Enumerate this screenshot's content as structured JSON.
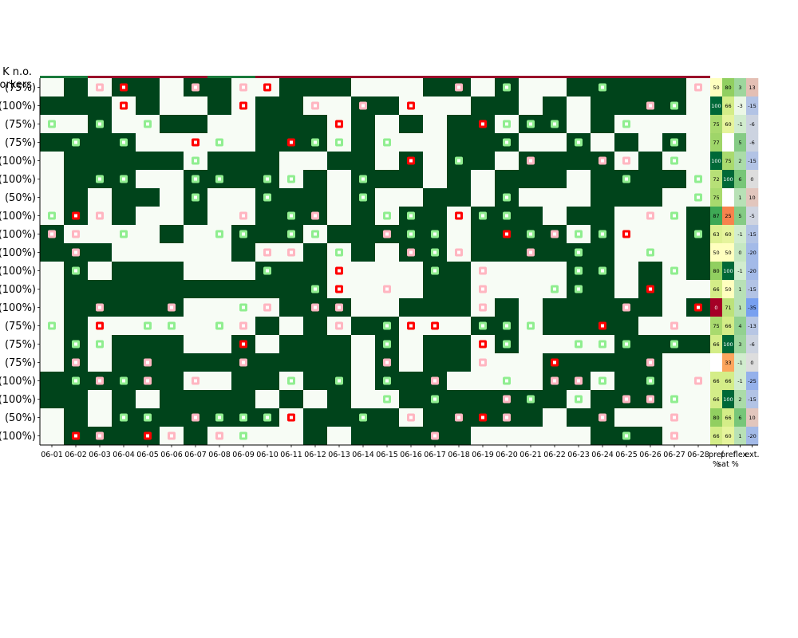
{
  "chart_data": {
    "type": "heatmap",
    "corner_label": [
      "K n.o.",
      "workers"
    ],
    "x_labels": [
      "06-01",
      "06-02",
      "06-03",
      "06-04",
      "06-05",
      "06-06",
      "06-07",
      "06-08",
      "06-09",
      "06-10",
      "06-11",
      "06-12",
      "06-13",
      "06-14",
      "06-15",
      "06-16",
      "06-17",
      "06-18",
      "06-19",
      "06-20",
      "06-21",
      "06-22",
      "06-23",
      "06-24",
      "06-25",
      "06-26",
      "06-27",
      "06-28"
    ],
    "row_labels": [
      "(75%)",
      "(100%)",
      "(75%)",
      "(75%)",
      "(100%)",
      "(100%)",
      "(50%)",
      "(100%)",
      "(100%)",
      "(100%)",
      "(100%)",
      "(100%)",
      "(100%)",
      "(75%)",
      "(75%)",
      "(75%)",
      "(100%)",
      "(100%)",
      "(50%)",
      "(100%)"
    ],
    "cell_legend": {
      "0": "off",
      "1": "on"
    },
    "grid": [
      "0101101100111000110100111110",
      "1110100101100110001101011110",
      "0010011001110101011011010000",
      "1111000001110100011100101010",
      "0111110111001101011011110100",
      "0111001111010111010111011110",
      "0101101001110100110100011100",
      "0101001001110101101110110001",
      "1000010011101111101111010001",
      "1110000010010101101111110001",
      "0101110001110000110000110101",
      "0111111111110000110000110100",
      "0111110000111001110101111101",
      "0100000001010110001101111000",
      "0101110010111010110100001111",
      "0101111111111010110001111100",
      "1111110011011011100001101100",
      "1101011110101001111111011100",
      "0101111111011110111110110000",
      "0111101000010111110000011100"
    ],
    "markers": {
      "legend": {
        "g": "light green",
        "G": "green",
        "p": "pink",
        "r": "red"
      },
      "grid": [
        "..pr..p.pr.......p.g...g...p",
        "...r....r..p.p.r.........pg.",
        "g.g.g.......r.....rggg..g...",
        ".g.g..rg..rgg.g....g..g...g.",
        "......g........r.g..p..pp.G.",
        "..gg..gg.gg..g..........g..g",
        "......g..g...g.....g.......g",
        "grp.....p.gp..gg.rgg.....pg.",
        "pp.g...gg.gg..pgg..rgpggr..g",
        ".p.......pp.g..pgp..p.g..g..",
        ".g.......g..r...g.p...gg..g.",
        "...........gr.p...p..gg..r..",
        "..p..p..gp.pp.....p.....p..r",
        "g.r.gg.gp...p.grr.ggg..r..p.",
        ".gg.....r.....g...rg..ggg.g.",
        ".p..p...p.....p...p..r...p..",
        ".gpgp.p...g.g.g.p..g.ppg.g.p",
        "..............g.g..pg.g.ppg.",
        "...gg.pgggr..g.p.prp...p..p.",
        ".rp.rp.pg.......p.......G.p."
      ]
    },
    "top_strip": "GGRRRRRGGRRRRRRRRRRRRRRRRRRR",
    "summary_columns": [
      {
        "name": "pref %",
        "values": [
          50,
          100,
          75,
          77,
          100,
          72,
          75,
          87,
          63,
          50,
          80,
          66,
          0,
          75,
          66,
          "",
          66,
          66,
          80,
          66
        ]
      },
      {
        "name": "pref sat %",
        "values": [
          80,
          66,
          60,
          "",
          75,
          100,
          "",
          25,
          60,
          50,
          100,
          50,
          71,
          66,
          100,
          33,
          66,
          100,
          66,
          60
        ]
      },
      {
        "name": "flex",
        "values": [
          3,
          -3,
          -1,
          5,
          2,
          6,
          1,
          5,
          -1,
          0,
          -1,
          1,
          1,
          4,
          3,
          -1,
          -1,
          2,
          6,
          1
        ]
      },
      {
        "name": "ext.",
        "values": [
          13,
          -15,
          -6,
          -6,
          -15,
          0,
          10,
          -5,
          -15,
          -20,
          -20,
          -15,
          -35,
          -13,
          -6,
          0,
          -25,
          -15,
          10,
          -20
        ]
      }
    ],
    "summary_header": [
      "pref",
      "pref",
      "flex",
      "ext."
    ],
    "summary_subheader": [
      "%",
      "sat %",
      "",
      ""
    ]
  }
}
